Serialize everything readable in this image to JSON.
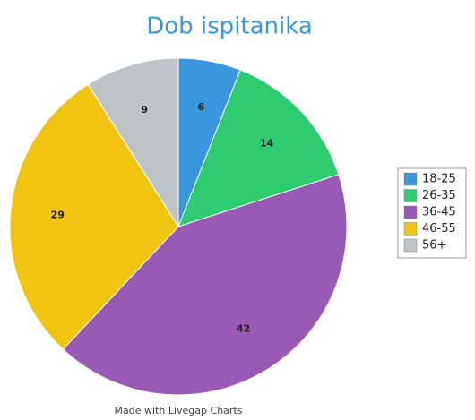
{
  "chart_data": {
    "type": "pie",
    "title": "Dob ispitanika",
    "categories": [
      "18-25",
      "26-35",
      "36-45",
      "46-55",
      "56+"
    ],
    "values": [
      6,
      14,
      42,
      29,
      9
    ],
    "colors": [
      "#3a97dd",
      "#2ecc71",
      "#9b59b6",
      "#f1c40f",
      "#bdc3c7"
    ],
    "legend": "right",
    "annotation": "Made with Livegap Charts"
  }
}
